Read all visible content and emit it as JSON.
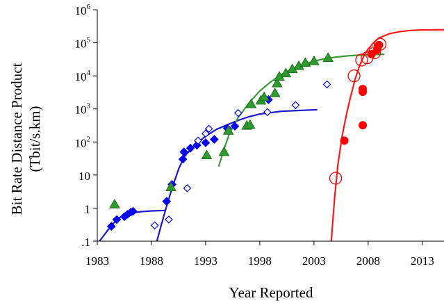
{
  "chart_data": {
    "type": "scatter",
    "title": "",
    "xlabel": "Year Reported",
    "ylabel_lines": [
      "Bit Rate Distance Product",
      "(Tbit/s.km)"
    ],
    "x_scale": "linear",
    "y_scale": "log",
    "xlim": [
      1983,
      2015
    ],
    "ylim": [
      0.1,
      1000000
    ],
    "grid": false,
    "x_ticks": [
      {
        "value": 1983,
        "label": "1983"
      },
      {
        "value": 1988,
        "label": "1988"
      },
      {
        "value": 1993,
        "label": "1993"
      },
      {
        "value": 1998,
        "label": "1998"
      },
      {
        "value": 2003,
        "label": "2003"
      },
      {
        "value": 2008,
        "label": "2008"
      },
      {
        "value": 2013,
        "label": "2013"
      }
    ],
    "y_ticks": [
      {
        "value": 0.1,
        "base": ".1",
        "exp": ""
      },
      {
        "value": 1,
        "base": "1",
        "exp": ""
      },
      {
        "value": 10,
        "base": "10",
        "exp": ""
      },
      {
        "value": 100,
        "base": "10",
        "exp": "2"
      },
      {
        "value": 1000,
        "base": "10",
        "exp": "3"
      },
      {
        "value": 10000,
        "base": "10",
        "exp": "4"
      },
      {
        "value": 100000,
        "base": "10",
        "exp": "5"
      },
      {
        "value": 1000000,
        "base": "10",
        "exp": "6"
      }
    ],
    "series": [
      {
        "marker": "filled-diamond",
        "color": "#0000ee",
        "points": [
          [
            1984.3,
            0.28
          ],
          [
            1984.8,
            0.45
          ],
          [
            1985.5,
            0.55
          ],
          [
            1985.8,
            0.65
          ],
          [
            1986.1,
            0.75
          ],
          [
            1986.3,
            0.8
          ],
          [
            1989.4,
            1.6
          ],
          [
            1989.9,
            5.2
          ],
          [
            1990.9,
            30
          ],
          [
            1991.0,
            50
          ],
          [
            1991.6,
            65
          ],
          [
            1992.2,
            80
          ],
          [
            1993.0,
            95
          ],
          [
            1993.8,
            120
          ],
          [
            1995.0,
            260
          ],
          [
            1995.7,
            300
          ],
          [
            1998.8,
            1900
          ]
        ]
      },
      {
        "marker": "open-diamond",
        "color": "#0000ee",
        "points": [
          [
            1988.3,
            0.3
          ],
          [
            1989.6,
            0.45
          ],
          [
            1991.3,
            4
          ],
          [
            1992.3,
            110
          ],
          [
            1993.0,
            180
          ],
          [
            1993.3,
            250
          ],
          [
            1996.0,
            750
          ],
          [
            1998.7,
            800
          ],
          [
            2001.3,
            1300
          ],
          [
            2004.2,
            5500
          ]
        ]
      },
      {
        "marker": "filled-triangle",
        "color": "#2e9b2e",
        "points": [
          [
            1984.6,
            1.3
          ],
          [
            1989.8,
            4.3
          ],
          [
            1993.1,
            40
          ],
          [
            1994.7,
            50
          ],
          [
            1995.1,
            220
          ],
          [
            1996.8,
            310
          ],
          [
            1997.1,
            330
          ],
          [
            1997.2,
            1400
          ],
          [
            1998.1,
            1800
          ],
          [
            1998.4,
            2300
          ],
          [
            1999.4,
            3000
          ],
          [
            1999.6,
            6000
          ],
          [
            1999.8,
            9500
          ],
          [
            2000.4,
            12000
          ],
          [
            2001.0,
            16000
          ],
          [
            2001.6,
            20000
          ],
          [
            2002.2,
            25000
          ],
          [
            2003.0,
            28000
          ],
          [
            2004.3,
            35000
          ]
        ]
      },
      {
        "marker": "filled-circle",
        "color": "#ff0000",
        "points": [
          [
            2005.8,
            110
          ],
          [
            2007.5,
            320
          ],
          [
            2007.5,
            3300
          ],
          [
            2007.5,
            4000
          ],
          [
            2008.3,
            45000
          ],
          [
            2008.8,
            60000
          ],
          [
            2009.0,
            85000
          ]
        ]
      },
      {
        "marker": "open-circle",
        "color": "#ff0000",
        "points": [
          [
            2005.0,
            8
          ],
          [
            2006.7,
            10000
          ],
          [
            2007.4,
            30000
          ],
          [
            2007.9,
            35000
          ],
          [
            2008.6,
            50000
          ],
          [
            2009.1,
            90000
          ]
        ]
      }
    ],
    "curves": [
      {
        "color": "#1a1acd",
        "points": [
          [
            1983.2,
            0.1
          ],
          [
            1984,
            0.22
          ],
          [
            1984.5,
            0.35
          ],
          [
            1985,
            0.5
          ],
          [
            1985.5,
            0.62
          ],
          [
            1986,
            0.7
          ],
          [
            1987,
            0.78
          ],
          [
            1988,
            0.82
          ],
          [
            1989.3,
            0.85
          ]
        ]
      },
      {
        "color": "#1a1acd",
        "points": [
          [
            1988.5,
            0.1
          ],
          [
            1989,
            0.4
          ],
          [
            1989.5,
            1.5
          ],
          [
            1990,
            5
          ],
          [
            1990.5,
            15
          ],
          [
            1991,
            35
          ],
          [
            1992,
            80
          ],
          [
            1993,
            150
          ],
          [
            1994,
            240
          ],
          [
            1995,
            330
          ],
          [
            1996,
            450
          ],
          [
            1997,
            580
          ],
          [
            1998,
            700
          ],
          [
            2000,
            850
          ],
          [
            2003.3,
            950
          ]
        ]
      },
      {
        "color": "#3a9a3a",
        "points": [
          [
            1994.2,
            18
          ],
          [
            1994.7,
            60
          ],
          [
            1995.2,
            180
          ],
          [
            1996,
            550
          ],
          [
            1997,
            1500
          ],
          [
            1998,
            3500
          ],
          [
            1999,
            6500
          ],
          [
            2000,
            11000
          ],
          [
            2001,
            16500
          ],
          [
            2002,
            22000
          ],
          [
            2003,
            28000
          ],
          [
            2004,
            33000
          ],
          [
            2005,
            37000
          ],
          [
            2006,
            40000
          ],
          [
            2007.5,
            43000
          ],
          [
            2009.5,
            45000
          ]
        ]
      },
      {
        "color": "#ff1a1a",
        "points": [
          [
            2004.6,
            0.1
          ],
          [
            2004.9,
            2
          ],
          [
            2005.2,
            20
          ],
          [
            2005.6,
            150
          ],
          [
            2006,
            700
          ],
          [
            2006.4,
            2500
          ],
          [
            2006.8,
            8000
          ],
          [
            2007.2,
            20000
          ],
          [
            2007.6,
            40000
          ],
          [
            2008,
            65000
          ],
          [
            2008.5,
            100000
          ],
          [
            2009,
            140000
          ],
          [
            2010,
            190000
          ],
          [
            2011,
            220000
          ],
          [
            2012,
            238000
          ],
          [
            2013,
            245000
          ],
          [
            2015,
            248000
          ]
        ]
      }
    ]
  }
}
